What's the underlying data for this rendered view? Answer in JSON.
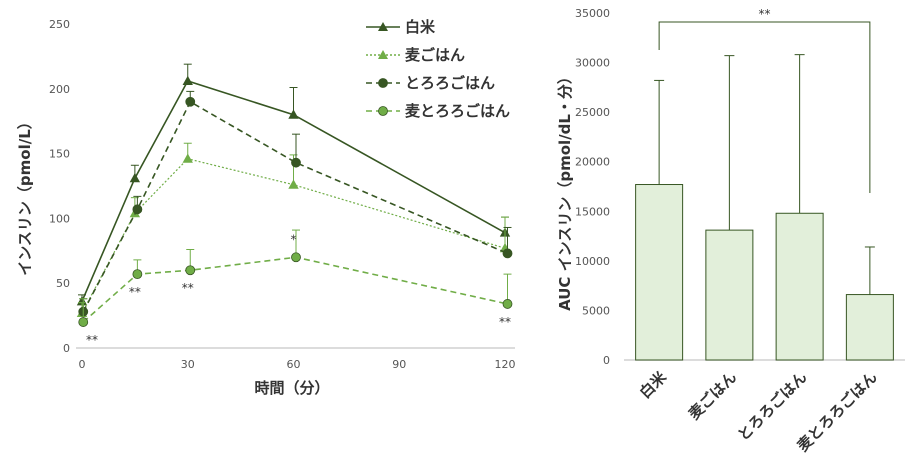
{
  "chart_data": [
    {
      "type": "line",
      "xlabel": "時間（分）",
      "ylabel": "インスリン（pmol/L）",
      "xlim": [
        0,
        120
      ],
      "ylim": [
        0,
        250
      ],
      "xticks": [
        "0",
        "30",
        "60",
        "90",
        "120"
      ],
      "yticks": [
        "0",
        "50",
        "100",
        "150",
        "200",
        "250"
      ],
      "legend_position": "top-right",
      "x": [
        0,
        15,
        30,
        60,
        120
      ],
      "series": [
        {
          "name": "白米",
          "style": "solid",
          "marker": "triangle",
          "color": "#375623",
          "values": [
            36,
            131,
            206,
            180,
            89
          ],
          "errors": [
            5,
            10,
            13,
            21,
            12
          ]
        },
        {
          "name": "麦ごはん",
          "style": "dotted",
          "marker": "triangle",
          "color": "#70AD47",
          "values": [
            27,
            104,
            146,
            126,
            77
          ],
          "errors": [
            8,
            12,
            12,
            23,
            24
          ]
        },
        {
          "name": "とろろごはん",
          "style": "dashed",
          "marker": "circle",
          "color": "#375623",
          "values": [
            28,
            107,
            190,
            143,
            73
          ],
          "errors": [
            10,
            10,
            8,
            22,
            20
          ]
        },
        {
          "name": "麦とろろごはん",
          "style": "dashed",
          "marker": "circle",
          "color": "#70AD47",
          "values": [
            20,
            57,
            60,
            70,
            34
          ],
          "errors": [
            18,
            11,
            16,
            21,
            23
          ]
        }
      ],
      "annotations": [
        {
          "x": 0,
          "text": "**"
        },
        {
          "x": 15,
          "text": "**"
        },
        {
          "x": 30,
          "text": "**"
        },
        {
          "x": 60,
          "text": "*"
        },
        {
          "x": 120,
          "text": "**"
        }
      ]
    },
    {
      "type": "bar",
      "xlabel": "",
      "ylabel": "AUC インスリン（pmol/dL・分）",
      "ylim": [
        0,
        35000
      ],
      "yticks": [
        "0",
        "5000",
        "10000",
        "15000",
        "20000",
        "25000",
        "30000",
        "35000"
      ],
      "categories": [
        "白米",
        "麦ごはん",
        "とろろごはん",
        "麦とろろごはん"
      ],
      "values": [
        17700,
        13100,
        14800,
        6600
      ],
      "errors": [
        10500,
        17600,
        16000,
        4800
      ],
      "bar_color": "#E2EFDA",
      "edge_color": "#375623",
      "bracket": {
        "from": "白米",
        "to": "麦とろろごはん",
        "text": "**"
      }
    }
  ]
}
